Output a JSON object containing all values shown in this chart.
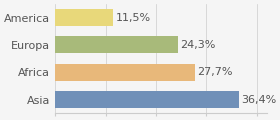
{
  "categories": [
    "America",
    "Europa",
    "Africa",
    "Asia"
  ],
  "values": [
    11.5,
    24.3,
    27.7,
    36.4
  ],
  "labels": [
    "11,5%",
    "24,3%",
    "27,7%",
    "36,4%"
  ],
  "bar_colors": [
    "#e8d87a",
    "#a8ba7a",
    "#e8b87a",
    "#7090b8"
  ],
  "background_color": "#f5f5f5",
  "xlim": [
    0,
    42
  ],
  "label_fontsize": 8,
  "tick_fontsize": 8
}
